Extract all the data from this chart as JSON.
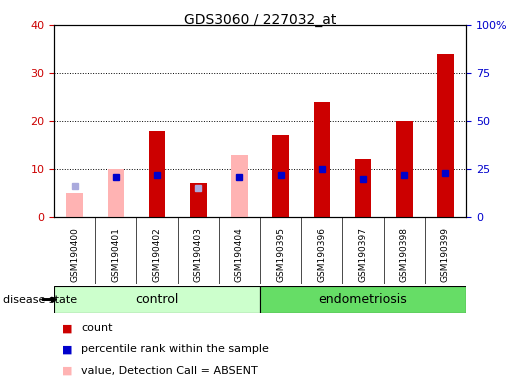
{
  "title": "GDS3060 / 227032_at",
  "samples": [
    "GSM190400",
    "GSM190401",
    "GSM190402",
    "GSM190403",
    "GSM190404",
    "GSM190395",
    "GSM190396",
    "GSM190397",
    "GSM190398",
    "GSM190399"
  ],
  "groups": [
    "control",
    "control",
    "control",
    "control",
    "control",
    "endometriosis",
    "endometriosis",
    "endometriosis",
    "endometriosis",
    "endometriosis"
  ],
  "count_values": [
    null,
    null,
    18,
    7,
    null,
    17,
    24,
    12,
    20,
    34
  ],
  "count_absent_values": [
    5,
    10,
    null,
    null,
    13,
    null,
    null,
    null,
    null,
    null
  ],
  "percentile_values": [
    null,
    21,
    22,
    null,
    21,
    22,
    25,
    20,
    22,
    23
  ],
  "percentile_absent_values": [
    16,
    null,
    null,
    15,
    null,
    null,
    null,
    null,
    null,
    null
  ],
  "count_color": "#cc0000",
  "count_absent_color": "#ffb3b3",
  "percentile_color": "#0000cc",
  "percentile_absent_color": "#aaaadd",
  "left_ylim": [
    0,
    40
  ],
  "right_ylim": [
    0,
    100
  ],
  "left_yticks": [
    0,
    10,
    20,
    30,
    40
  ],
  "right_yticks": [
    0,
    25,
    50,
    75,
    100
  ],
  "right_yticklabels": [
    "0",
    "25",
    "50",
    "75",
    "100%"
  ],
  "group_colors_light": "#ccffcc",
  "group_colors_dark": "#66dd66",
  "disease_state_label": "disease state",
  "xtick_bg_color": "#d0d0d0",
  "plot_bg_color": "#ffffff",
  "bar_width": 0.4
}
